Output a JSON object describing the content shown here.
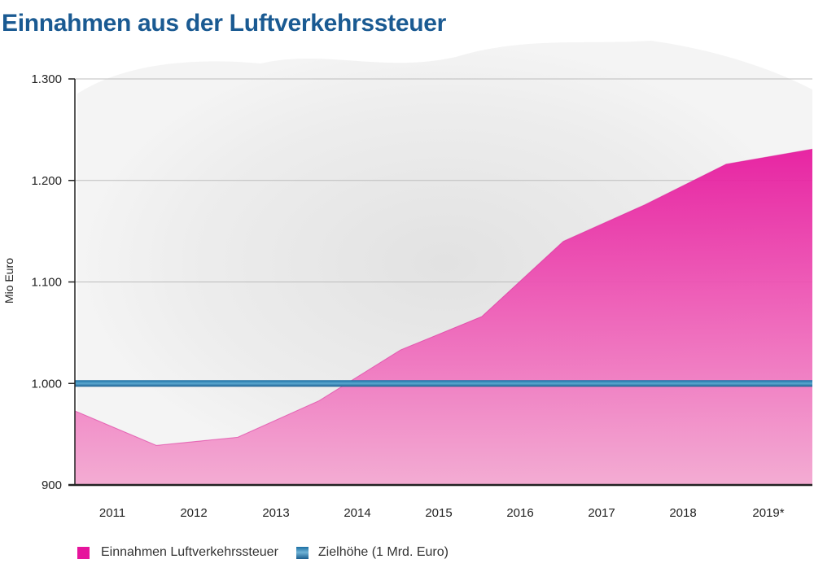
{
  "title": "Einnahmen aus der Luftverkehrssteuer",
  "colors": {
    "title": "#1a5a92",
    "revenue": "#e6149c",
    "target": "#2a7aab",
    "grid": "#bdbdbd",
    "axis": "#222222"
  },
  "chart_data": {
    "type": "area",
    "title": "Einnahmen aus der Luftverkehrssteuer",
    "xlabel": "",
    "ylabel": "Mio Euro",
    "categories": [
      "2011",
      "2012",
      "2013",
      "2014",
      "2015",
      "2016",
      "2017",
      "2018",
      "2019*"
    ],
    "series": [
      {
        "name": "Einnahmen Luftverkehrssteuer",
        "type": "area",
        "values": [
          973,
          939,
          947,
          983,
          1033,
          1066,
          1140,
          1176,
          1216
        ]
      },
      {
        "name": "Zielhöhe (1 Mrd. Euro)",
        "type": "line",
        "values": [
          1000,
          1000,
          1000,
          1000,
          1000,
          1000,
          1000,
          1000,
          1000
        ]
      }
    ],
    "ylim": [
      900,
      1300
    ],
    "yticks": [
      900,
      1000,
      1100,
      1200,
      1300
    ],
    "ytick_labels": [
      "900",
      "1.000",
      "1.100",
      "1.200",
      "1.300"
    ],
    "grid": true,
    "legend_position": "bottom-left"
  }
}
